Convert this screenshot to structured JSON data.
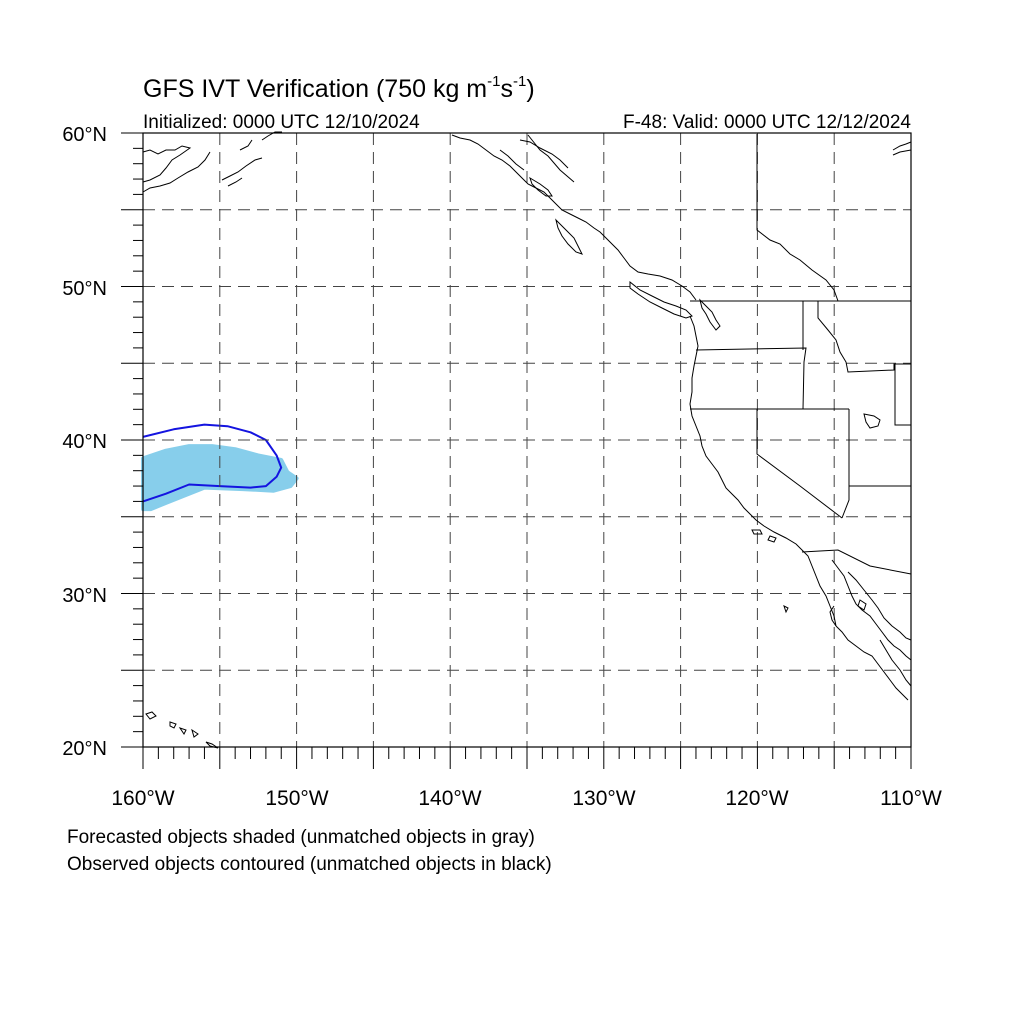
{
  "title": {
    "main": "GFS IVT Verification (750 kg m",
    "sup1": "-1",
    "mid": "s",
    "sup2": "-1",
    "end": ")"
  },
  "subtitle": {
    "initialized": "Initialized: 0000 UTC 12/10/2024",
    "valid": "F-48: Valid: 0000 UTC 12/12/2024"
  },
  "axes": {
    "lat_labels": [
      "60°N",
      "50°N",
      "40°N",
      "30°N",
      "20°N"
    ],
    "lon_labels": [
      "160°W",
      "150°W",
      "140°W",
      "130°W",
      "120°W",
      "110°W"
    ],
    "lat_range": [
      20,
      60
    ],
    "lon_range": [
      -160,
      -110
    ],
    "grid_spacing_deg": 5,
    "grid": "dashed"
  },
  "objects": {
    "forecast_shaded": {
      "color": "#87ceeb",
      "outline_lonlat": [
        [
          -160,
          38.8
        ],
        [
          -158.5,
          39.3
        ],
        [
          -157,
          39.6
        ],
        [
          -155.5,
          39.6
        ],
        [
          -154,
          39.4
        ],
        [
          -152.5,
          39.0
        ],
        [
          -151.0,
          38.7
        ],
        [
          -150.6,
          37.9
        ],
        [
          -150.0,
          37.5
        ],
        [
          -150.4,
          37.0
        ],
        [
          -151.5,
          36.7
        ],
        [
          -153.5,
          36.8
        ],
        [
          -156.0,
          36.9
        ],
        [
          -157.5,
          36.3
        ],
        [
          -158.5,
          35.9
        ],
        [
          -159.5,
          35.5
        ],
        [
          -160.0,
          35.5
        ]
      ]
    },
    "observed_contour": {
      "color": "#1414e0",
      "line_lonlat": [
        [
          -160,
          40.2
        ],
        [
          -158,
          40.7
        ],
        [
          -156,
          41.0
        ],
        [
          -154.5,
          40.9
        ],
        [
          -153,
          40.5
        ],
        [
          -152,
          40.0
        ],
        [
          -151.3,
          39.0
        ],
        [
          -151.0,
          38.2
        ],
        [
          -151.3,
          37.6
        ],
        [
          -152.0,
          37.0
        ],
        [
          -153,
          36.9
        ],
        [
          -155,
          37.0
        ],
        [
          -157,
          37.1
        ],
        [
          -158.5,
          36.5
        ],
        [
          -160,
          36.0
        ]
      ]
    }
  },
  "footer": {
    "line1": "Forecasted objects shaded (unmatched objects in gray)",
    "line2": "Observed objects contoured (unmatched objects in black)"
  }
}
